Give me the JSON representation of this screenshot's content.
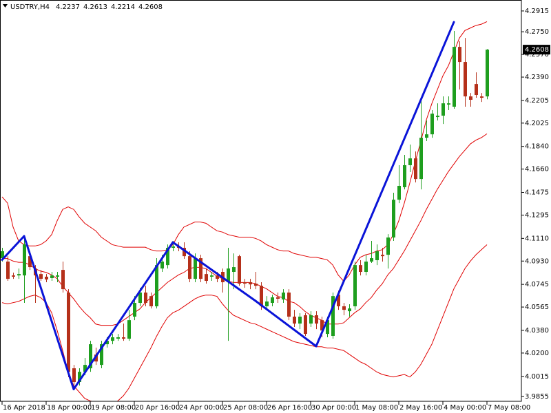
{
  "chart_data": {
    "type": "candlestick",
    "title": "USDTRY,H4",
    "categories": [
      "16 Apr 2018",
      null,
      null,
      null,
      null,
      null,
      null,
      null,
      "18 Apr 00:00",
      null,
      null,
      null,
      null,
      null,
      null,
      null,
      "19 Apr 08:00",
      null,
      null,
      null,
      null,
      null,
      null,
      null,
      "20 Apr 16:00",
      null,
      null,
      null,
      null,
      null,
      null,
      null,
      "24 Apr 00:00",
      null,
      null,
      null,
      null,
      null,
      null,
      null,
      "25 Apr 08:00",
      null,
      null,
      null,
      null,
      null,
      null,
      null,
      "26 Apr 16:00",
      null,
      null,
      null,
      null,
      null,
      null,
      null,
      "30 Apr 00:00",
      null,
      null,
      null,
      null,
      null,
      null,
      null,
      "1 May 08:00",
      null,
      null,
      null,
      null,
      null,
      null,
      null,
      "2 May 16:00",
      null,
      null,
      null,
      null,
      null,
      null,
      null,
      "4 May 00:00",
      null,
      null,
      null,
      null,
      null,
      null,
      null,
      "7 May 08:00"
    ],
    "ohlc": [
      [
        4.0953,
        4.1035,
        4.0926,
        4.1008
      ],
      [
        4.0926,
        4.0969,
        4.0773,
        4.0789
      ],
      [
        4.0816,
        4.0838,
        4.0789,
        4.0806
      ],
      [
        4.0816,
        4.0871,
        4.0789,
        4.0827
      ],
      [
        4.0816,
        4.1117,
        4.0598,
        4.1062
      ],
      [
        4.0969,
        4.1008,
        4.086,
        4.0882
      ],
      [
        4.0871,
        4.0898,
        4.0598,
        4.0816
      ],
      [
        4.0827,
        4.086,
        4.0773,
        4.0789
      ],
      [
        4.0806,
        4.0827,
        4.0762,
        4.0784
      ],
      [
        4.0795,
        4.0844,
        4.0773,
        4.0816
      ],
      [
        4.0806,
        4.0844,
        4.0762,
        4.0816
      ],
      [
        4.086,
        4.0926,
        4.068,
        4.0707
      ],
      [
        4.068,
        4.0707,
        4.0008,
        4.0051
      ],
      [
        4.0079,
        4.0106,
        3.9915,
        3.997
      ],
      [
        3.997,
        4.0079,
        3.9942,
        4.0051
      ],
      [
        4.0051,
        4.0161,
        4.0024,
        4.0106
      ],
      [
        4.0079,
        4.0297,
        4.0051,
        4.027
      ],
      [
        4.0188,
        4.0243,
        4.0106,
        4.0133
      ],
      [
        4.0106,
        4.0297,
        4.0079,
        4.027
      ],
      [
        4.027,
        4.0325,
        4.0243,
        4.0297
      ],
      [
        4.0297,
        4.0352,
        4.027,
        4.0325
      ],
      [
        4.0314,
        4.0352,
        4.0297,
        4.0325
      ],
      [
        4.0325,
        4.0434,
        4.0297,
        4.0314
      ],
      [
        4.0314,
        4.0543,
        4.0297,
        4.0461
      ],
      [
        4.0489,
        4.0652,
        4.0461,
        4.0598
      ],
      [
        4.0598,
        4.0718,
        4.0571,
        4.068
      ],
      [
        4.068,
        4.0734,
        4.0571,
        4.0598
      ],
      [
        4.0652,
        4.068,
        4.0554,
        4.0571
      ],
      [
        4.0571,
        4.0953,
        4.0554,
        4.0898
      ],
      [
        4.0871,
        4.098,
        4.0844,
        4.0926
      ],
      [
        4.0898,
        4.1062,
        4.0871,
        4.1035
      ],
      [
        4.1035,
        4.109,
        4.1008,
        4.1046
      ],
      [
        4.1046,
        4.1079,
        4.1008,
        4.1035
      ],
      [
        4.1035,
        4.1079,
        4.0948,
        4.0969
      ],
      [
        4.0969,
        4.1008,
        4.0762,
        4.0789
      ],
      [
        4.0789,
        4.0991,
        4.0762,
        4.0953
      ],
      [
        4.0953,
        4.098,
        4.0762,
        4.0789
      ],
      [
        4.0827,
        4.0871,
        4.0751,
        4.0773
      ],
      [
        4.0806,
        4.0844,
        4.0773,
        4.0816
      ],
      [
        4.0816,
        4.0844,
        4.0762,
        4.0789
      ],
      [
        4.0844,
        4.0871,
        4.068,
        4.0762
      ],
      [
        4.0762,
        4.1035,
        4.0297,
        4.0871
      ],
      [
        4.0844,
        4.0991,
        4.0707,
        4.0882
      ],
      [
        4.0969,
        4.098,
        4.0734,
        4.0751
      ],
      [
        4.0762,
        4.0789,
        4.0718,
        4.0751
      ],
      [
        4.0762,
        4.0789,
        4.0707,
        4.0745
      ],
      [
        4.0751,
        4.0844,
        4.0707,
        4.0734
      ],
      [
        4.0734,
        4.0762,
        4.0543,
        4.0571
      ],
      [
        4.0571,
        4.0652,
        4.0543,
        4.0609
      ],
      [
        4.0598,
        4.0663,
        4.0571,
        4.0642
      ],
      [
        4.0642,
        4.068,
        4.0598,
        4.0631
      ],
      [
        4.0625,
        4.0707,
        4.0598,
        4.068
      ],
      [
        4.068,
        4.0707,
        4.0461,
        4.0489
      ],
      [
        4.0489,
        4.0543,
        4.0407,
        4.0434
      ],
      [
        4.0434,
        4.0516,
        4.039,
        4.0489
      ],
      [
        4.05,
        4.0516,
        4.0336,
        4.0352
      ],
      [
        4.0434,
        4.0532,
        4.0407,
        4.05
      ],
      [
        4.05,
        4.0532,
        4.039,
        4.0434
      ],
      [
        4.0461,
        4.0489,
        4.0325,
        4.0379
      ],
      [
        4.0352,
        4.0489,
        4.0325,
        4.0461
      ],
      [
        4.0336,
        4.068,
        4.0314,
        4.0652
      ],
      [
        4.0663,
        4.0696,
        4.0543,
        4.0571
      ],
      [
        4.0571,
        4.0598,
        4.05,
        4.0543
      ],
      [
        4.0532,
        4.0587,
        4.0489,
        4.0554
      ],
      [
        4.0571,
        4.0926,
        4.0543,
        4.0898
      ],
      [
        4.0898,
        4.0937,
        4.0816,
        4.0844
      ],
      [
        4.0844,
        4.098,
        4.0816,
        4.0926
      ],
      [
        4.0926,
        4.109,
        4.0915,
        4.0953
      ],
      [
        4.0937,
        4.1062,
        4.0898,
        4.1008
      ],
      [
        4.098,
        4.1035,
        4.0926,
        4.0969
      ],
      [
        4.098,
        4.1144,
        4.0871,
        4.1117
      ],
      [
        4.1117,
        4.1472,
        4.109,
        4.1417
      ],
      [
        4.1417,
        4.1691,
        4.139,
        4.1527
      ],
      [
        4.1516,
        4.1773,
        4.1499,
        4.1691
      ],
      [
        4.1691,
        4.1855,
        4.1636,
        4.1745
      ],
      [
        4.1745,
        4.18,
        4.1554,
        4.1581
      ],
      [
        4.1581,
        4.221,
        4.1499,
        4.1909
      ],
      [
        4.1909,
        4.2046,
        4.1882,
        4.1936
      ],
      [
        4.1936,
        4.2128,
        4.1909,
        4.21
      ],
      [
        4.2073,
        4.2182,
        4.2046,
        4.2084
      ],
      [
        4.2084,
        4.2237,
        4.2018,
        4.2182
      ],
      [
        4.2172,
        4.2237,
        4.2128,
        4.2182
      ],
      [
        4.2155,
        4.2756,
        4.2139,
        4.263
      ],
      [
        4.263,
        4.2674,
        4.2292,
        4.251
      ],
      [
        4.251,
        4.2701,
        4.2155,
        4.2237
      ],
      [
        4.2237,
        4.2264,
        4.2155,
        4.221
      ],
      [
        4.2335,
        4.2428,
        4.2226,
        4.2248
      ],
      [
        4.2237,
        4.2264,
        4.2193,
        4.2226
      ],
      [
        4.2237,
        4.2613,
        4.2214,
        4.2608
      ]
    ],
    "up_color": "#1e9e1e",
    "down_color": "#b5301a",
    "bollinger": {
      "color": "#e00000",
      "upper": [
        4.144,
        4.139,
        4.12,
        4.109,
        4.106,
        4.105,
        4.105,
        4.106,
        4.109,
        4.114,
        4.125,
        4.134,
        4.136,
        4.134,
        4.128,
        4.123,
        4.12,
        4.117,
        4.112,
        4.109,
        4.106,
        4.105,
        4.104,
        4.104,
        4.104,
        4.104,
        4.104,
        4.102,
        4.101,
        4.101,
        4.102,
        4.106,
        4.114,
        4.12,
        4.122,
        4.124,
        4.124,
        4.123,
        4.12,
        4.117,
        4.116,
        4.114,
        4.113,
        4.112,
        4.112,
        4.112,
        4.111,
        4.109,
        4.106,
        4.104,
        4.102,
        4.101,
        4.101,
        4.099,
        4.098,
        4.097,
        4.096,
        4.096,
        4.095,
        4.094,
        4.09,
        4.082,
        4.077,
        4.082,
        4.09,
        4.096,
        4.098,
        4.099,
        4.101,
        4.102,
        4.106,
        4.114,
        4.125,
        4.139,
        4.155,
        4.172,
        4.188,
        4.205,
        4.218,
        4.229,
        4.24,
        4.248,
        4.259,
        4.27,
        4.276,
        4.278,
        4.28,
        4.281,
        4.283
      ],
      "middle": [
        4.095,
        4.095,
        4.093,
        4.092,
        4.092,
        4.09,
        4.087,
        4.085,
        4.084,
        4.082,
        4.079,
        4.073,
        4.068,
        4.063,
        4.057,
        4.052,
        4.048,
        4.043,
        4.042,
        4.042,
        4.042,
        4.043,
        4.046,
        4.049,
        4.052,
        4.055,
        4.06,
        4.064,
        4.068,
        4.072,
        4.076,
        4.079,
        4.082,
        4.084,
        4.087,
        4.088,
        4.088,
        4.087,
        4.084,
        4.081,
        4.079,
        4.077,
        4.076,
        4.076,
        4.076,
        4.076,
        4.075,
        4.073,
        4.071,
        4.068,
        4.065,
        4.064,
        4.061,
        4.06,
        4.057,
        4.053,
        4.05,
        4.048,
        4.046,
        4.043,
        4.043,
        4.043,
        4.044,
        4.048,
        4.052,
        4.055,
        4.06,
        4.064,
        4.07,
        4.075,
        4.082,
        4.087,
        4.094,
        4.101,
        4.109,
        4.117,
        4.125,
        4.134,
        4.142,
        4.15,
        4.157,
        4.164,
        4.17,
        4.176,
        4.181,
        4.186,
        4.189,
        4.191,
        4.194
      ],
      "lower": [
        4.06,
        4.059,
        4.06,
        4.061,
        4.063,
        4.065,
        4.066,
        4.064,
        4.06,
        4.052,
        4.038,
        4.022,
        4.005,
        3.994,
        3.989,
        3.984,
        3.982,
        3.981,
        3.979,
        3.978,
        3.979,
        3.982,
        3.986,
        3.992,
        4.0,
        4.008,
        4.016,
        4.024,
        4.033,
        4.041,
        4.048,
        4.052,
        4.054,
        4.057,
        4.06,
        4.063,
        4.065,
        4.066,
        4.066,
        4.065,
        4.059,
        4.054,
        4.05,
        4.048,
        4.046,
        4.044,
        4.043,
        4.041,
        4.039,
        4.037,
        4.035,
        4.033,
        4.031,
        4.029,
        4.028,
        4.027,
        4.026,
        4.025,
        4.025,
        4.024,
        4.024,
        4.023,
        4.022,
        4.019,
        4.016,
        4.013,
        4.011,
        4.008,
        4.005,
        4.003,
        4.002,
        4.001,
        4.002,
        4.003,
        4.001,
        4.005,
        4.011,
        4.019,
        4.027,
        4.038,
        4.049,
        4.06,
        4.071,
        4.079,
        4.087,
        4.093,
        4.098,
        4.102,
        4.106
      ]
    },
    "zigzag": {
      "color": "#0a14d8",
      "values": [
        4.094,
        null,
        null,
        null,
        4.1128,
        null,
        null,
        null,
        null,
        null,
        null,
        null,
        null,
        3.9913,
        null,
        null,
        null,
        null,
        null,
        null,
        null,
        null,
        null,
        null,
        null,
        null,
        null,
        null,
        null,
        null,
        null,
        4.1079,
        null,
        null,
        null,
        null,
        null,
        null,
        null,
        null,
        null,
        null,
        null,
        null,
        null,
        null,
        4.0614,
        null,
        null,
        null,
        null,
        null,
        null,
        null,
        null,
        null,
        null,
        4.0254,
        null,
        null,
        null,
        null,
        null,
        null,
        null,
        null,
        null,
        null,
        null,
        null,
        null,
        null,
        null,
        null,
        null,
        null,
        null,
        null,
        null,
        null,
        null,
        null,
        4.2827,
        null,
        null,
        null,
        null,
        null
      ]
    },
    "ylim": [
      3.9817,
      4.3002
    ],
    "yticks": [
      4.2915,
      {
        "value": 4.275,
        "label": "4.2750"
      },
      {
        "value": 4.257,
        "label": "4.2570"
      },
      {
        "value": 4.239,
        "label": "4.2390"
      },
      4.2205,
      4.2025,
      {
        "value": 4.184,
        "label": "4.1840"
      },
      {
        "value": 4.166,
        "label": "4.1660"
      },
      4.1475,
      4.1295,
      {
        "value": 4.111,
        "label": "4.1110"
      },
      {
        "value": 4.093,
        "label": "4.0930"
      },
      4.0745,
      4.0565,
      {
        "value": 4.038,
        "label": "4.0380"
      },
      {
        "value": 4.02,
        "label": "4.0200"
      },
      4.0015,
      3.9855
    ]
  }
}
